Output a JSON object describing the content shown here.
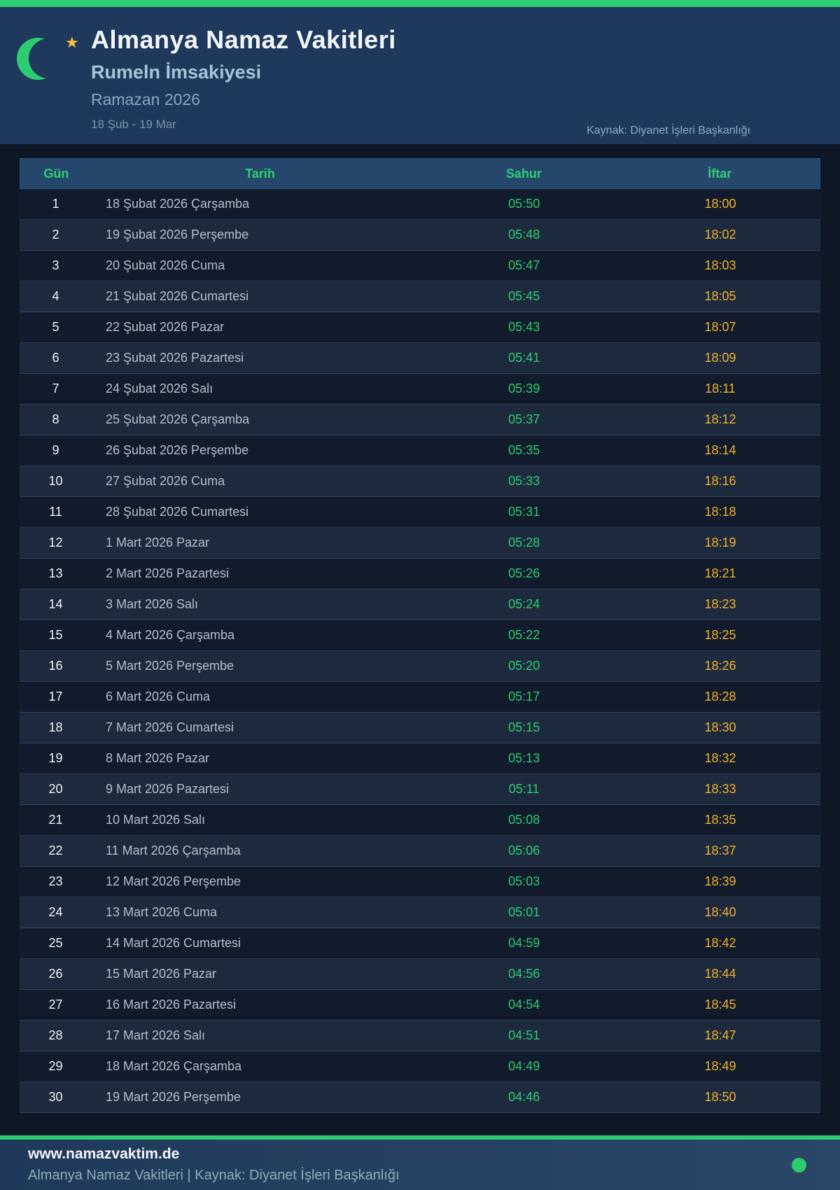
{
  "theme": {
    "accent_green": "#2ecc71",
    "accent_amber": "#f0b02c",
    "header_bg": "#1e395c",
    "page_bg": "#0d1726",
    "table_header_bg": "#25476b",
    "row_odd_bg": "#111b2c",
    "row_even_bg": "#1d2a3e",
    "footer_bg": "#23405f",
    "star_gold": "#f5c33b"
  },
  "header": {
    "moon_icon": "crescent-moon",
    "star_icon": "star",
    "title": "Almanya Namaz Vakitleri",
    "subtitle": "Rumeln İmsakiyesi",
    "season": "Ramazan 2026",
    "date_range": "18 Şub - 19 Mar",
    "source": "Kaynak: Diyanet İşleri Başkanlığı"
  },
  "table": {
    "columns": [
      "Gün",
      "Tarih",
      "Sahur",
      "İftar"
    ],
    "rows": [
      {
        "gun": "1",
        "tarih": "18 Şubat 2026 Çarşamba",
        "sahur": "05:50",
        "iftar": "18:00"
      },
      {
        "gun": "2",
        "tarih": "19 Şubat 2026 Perşembe",
        "sahur": "05:48",
        "iftar": "18:02"
      },
      {
        "gun": "3",
        "tarih": "20 Şubat 2026 Cuma",
        "sahur": "05:47",
        "iftar": "18:03"
      },
      {
        "gun": "4",
        "tarih": "21 Şubat 2026 Cumartesi",
        "sahur": "05:45",
        "iftar": "18:05"
      },
      {
        "gun": "5",
        "tarih": "22 Şubat 2026 Pazar",
        "sahur": "05:43",
        "iftar": "18:07"
      },
      {
        "gun": "6",
        "tarih": "23 Şubat 2026 Pazartesi",
        "sahur": "05:41",
        "iftar": "18:09"
      },
      {
        "gun": "7",
        "tarih": "24 Şubat 2026 Salı",
        "sahur": "05:39",
        "iftar": "18:11"
      },
      {
        "gun": "8",
        "tarih": "25 Şubat 2026 Çarşamba",
        "sahur": "05:37",
        "iftar": "18:12"
      },
      {
        "gun": "9",
        "tarih": "26 Şubat 2026 Perşembe",
        "sahur": "05:35",
        "iftar": "18:14"
      },
      {
        "gun": "10",
        "tarih": "27 Şubat 2026 Cuma",
        "sahur": "05:33",
        "iftar": "18:16"
      },
      {
        "gun": "11",
        "tarih": "28 Şubat 2026 Cumartesi",
        "sahur": "05:31",
        "iftar": "18:18"
      },
      {
        "gun": "12",
        "tarih": "1 Mart 2026 Pazar",
        "sahur": "05:28",
        "iftar": "18:19"
      },
      {
        "gun": "13",
        "tarih": "2 Mart 2026 Pazartesi",
        "sahur": "05:26",
        "iftar": "18:21"
      },
      {
        "gun": "14",
        "tarih": "3 Mart 2026 Salı",
        "sahur": "05:24",
        "iftar": "18:23"
      },
      {
        "gun": "15",
        "tarih": "4 Mart 2026 Çarşamba",
        "sahur": "05:22",
        "iftar": "18:25"
      },
      {
        "gun": "16",
        "tarih": "5 Mart 2026 Perşembe",
        "sahur": "05:20",
        "iftar": "18:26"
      },
      {
        "gun": "17",
        "tarih": "6 Mart 2026 Cuma",
        "sahur": "05:17",
        "iftar": "18:28"
      },
      {
        "gun": "18",
        "tarih": "7 Mart 2026 Cumartesi",
        "sahur": "05:15",
        "iftar": "18:30"
      },
      {
        "gun": "19",
        "tarih": "8 Mart 2026 Pazar",
        "sahur": "05:13",
        "iftar": "18:32"
      },
      {
        "gun": "20",
        "tarih": "9 Mart 2026 Pazartesi",
        "sahur": "05:11",
        "iftar": "18:33"
      },
      {
        "gun": "21",
        "tarih": "10 Mart 2026 Salı",
        "sahur": "05:08",
        "iftar": "18:35"
      },
      {
        "gun": "22",
        "tarih": "11 Mart 2026 Çarşamba",
        "sahur": "05:06",
        "iftar": "18:37"
      },
      {
        "gun": "23",
        "tarih": "12 Mart 2026 Perşembe",
        "sahur": "05:03",
        "iftar": "18:39"
      },
      {
        "gun": "24",
        "tarih": "13 Mart 2026 Cuma",
        "sahur": "05:01",
        "iftar": "18:40"
      },
      {
        "gun": "25",
        "tarih": "14 Mart 2026 Cumartesi",
        "sahur": "04:59",
        "iftar": "18:42"
      },
      {
        "gun": "26",
        "tarih": "15 Mart 2026 Pazar",
        "sahur": "04:56",
        "iftar": "18:44"
      },
      {
        "gun": "27",
        "tarih": "16 Mart 2026 Pazartesi",
        "sahur": "04:54",
        "iftar": "18:45"
      },
      {
        "gun": "28",
        "tarih": "17 Mart 2026 Salı",
        "sahur": "04:51",
        "iftar": "18:47"
      },
      {
        "gun": "29",
        "tarih": "18 Mart 2026 Çarşamba",
        "sahur": "04:49",
        "iftar": "18:49"
      },
      {
        "gun": "30",
        "tarih": "19 Mart 2026 Perşembe",
        "sahur": "04:46",
        "iftar": "18:50"
      }
    ]
  },
  "footer": {
    "website": "www.namazvaktim.de",
    "tagline": "Almanya Namaz Vakitleri | Kaynak: Diyanet İşleri Başkanlığı"
  }
}
